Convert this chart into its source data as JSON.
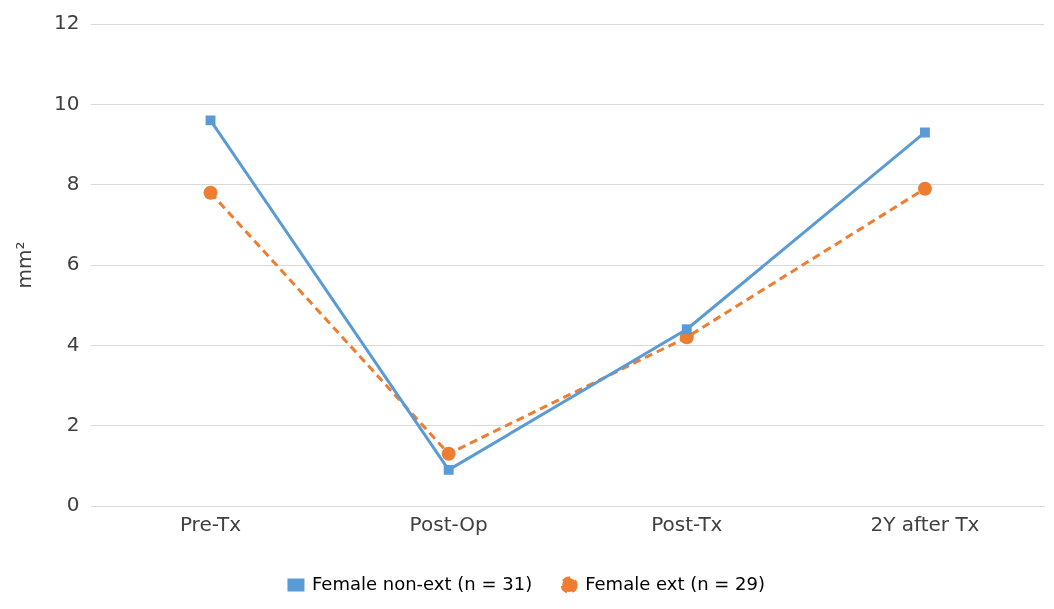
{
  "chart_data": {
    "type": "line",
    "ylabel": "mm²",
    "categories": [
      "Pre-Tx",
      "Post-Op",
      "Post-Tx",
      "2Y after Tx"
    ],
    "series": [
      {
        "name": "Female non-ext (n = 31)",
        "color": "#5b9bd5",
        "marker": "square",
        "line_style": "solid",
        "values": [
          9.6,
          0.9,
          4.4,
          9.3
        ]
      },
      {
        "name": "Female ext (n = 29)",
        "color": "#ed7d31",
        "marker": "circle",
        "line_style": "dashed",
        "values": [
          7.8,
          1.3,
          4.2,
          7.9
        ]
      }
    ],
    "ylim": [
      0,
      12
    ],
    "yticks": [
      0,
      2,
      4,
      6,
      8,
      10,
      12
    ],
    "grid": "y",
    "legend": "bottom"
  }
}
